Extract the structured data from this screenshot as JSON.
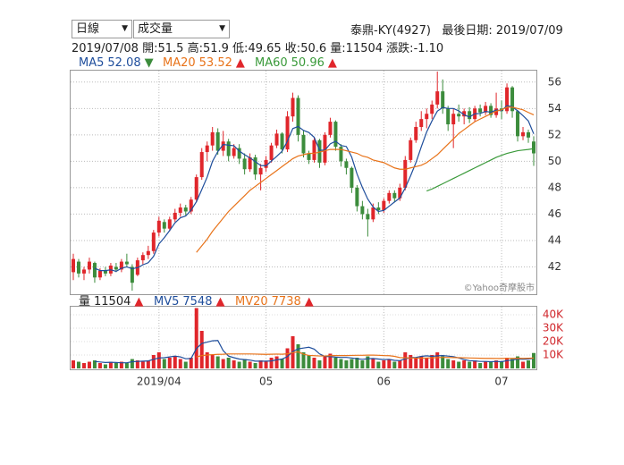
{
  "header": {
    "period": "日線",
    "indicator": "成交量",
    "stock": "泰鼎-KY(4927)",
    "last_date": "最後日期: 2019/07/09",
    "quote_date": "2019/07/08",
    "quote_labels": [
      "開:",
      "高:",
      "低:",
      "收:",
      "量:",
      "漲跌:"
    ],
    "change": "-1.10"
  },
  "chart_data": [
    {
      "type": "candlestick",
      "up_color": "#e0262b",
      "down_color": "#3c8c3c",
      "grid": true,
      "ylim": [
        40,
        56.8
      ],
      "yticks": [
        42,
        44,
        46,
        48,
        50,
        52,
        54,
        56
      ],
      "watermark": "©Yahoo奇摩股市",
      "candles": [
        [
          41.6,
          43.0,
          41.0,
          42.6
        ],
        [
          42.4,
          42.6,
          41.2,
          41.5
        ],
        [
          41.5,
          42.0,
          41.0,
          41.8
        ],
        [
          41.8,
          42.7,
          41.5,
          42.4
        ],
        [
          42.3,
          42.4,
          40.8,
          41.2
        ],
        [
          41.2,
          41.9,
          41.0,
          41.7
        ],
        [
          41.7,
          42.0,
          41.3,
          41.5
        ],
        [
          41.5,
          42.3,
          41.3,
          42.1
        ],
        [
          42.0,
          42.3,
          41.6,
          41.8
        ],
        [
          41.8,
          42.6,
          41.6,
          42.4
        ],
        [
          42.4,
          43.0,
          42.0,
          42.2
        ],
        [
          42.0,
          42.2,
          40.2,
          40.8
        ],
        [
          41.4,
          42.7,
          41.3,
          42.5
        ],
        [
          42.5,
          43.1,
          42.2,
          42.9
        ],
        [
          42.9,
          43.6,
          42.6,
          43.2
        ],
        [
          43.2,
          44.8,
          43.0,
          44.6
        ],
        [
          44.6,
          45.8,
          44.3,
          45.5
        ],
        [
          45.4,
          45.6,
          44.6,
          44.9
        ],
        [
          44.9,
          45.8,
          44.7,
          45.6
        ],
        [
          45.6,
          46.4,
          45.4,
          46.1
        ],
        [
          46.1,
          46.8,
          45.8,
          46.5
        ],
        [
          46.5,
          46.7,
          45.9,
          46.2
        ],
        [
          46.2,
          47.3,
          46.0,
          47.1
        ],
        [
          47.1,
          49.0,
          46.9,
          48.8
        ],
        [
          48.8,
          51.0,
          48.6,
          50.7
        ],
        [
          50.7,
          51.5,
          50.0,
          51.2
        ],
        [
          51.2,
          52.6,
          50.8,
          52.2
        ],
        [
          52.2,
          52.5,
          50.5,
          50.8
        ],
        [
          50.8,
          52.3,
          50.4,
          51.5
        ],
        [
          51.5,
          51.7,
          50.0,
          50.4
        ],
        [
          50.4,
          51.3,
          50.2,
          51.0
        ],
        [
          51.0,
          51.3,
          49.8,
          50.2
        ],
        [
          50.2,
          50.6,
          49.0,
          49.4
        ],
        [
          49.4,
          50.6,
          49.2,
          50.3
        ],
        [
          50.3,
          50.5,
          48.6,
          49.0
        ],
        [
          49.0,
          49.8,
          47.8,
          49.5
        ],
        [
          49.5,
          50.4,
          49.2,
          50.1
        ],
        [
          50.1,
          51.4,
          49.9,
          51.2
        ],
        [
          51.2,
          52.4,
          51.0,
          52.1
        ],
        [
          52.1,
          52.2,
          50.6,
          50.9
        ],
        [
          50.9,
          53.8,
          50.7,
          53.4
        ],
        [
          53.4,
          55.2,
          53.0,
          54.8
        ],
        [
          54.8,
          55.0,
          51.5,
          52.0
        ],
        [
          52.0,
          52.3,
          50.3,
          50.6
        ],
        [
          50.6,
          50.8,
          49.8,
          50.1
        ],
        [
          50.1,
          51.8,
          49.9,
          51.6
        ],
        [
          51.6,
          51.7,
          49.5,
          49.9
        ],
        [
          49.9,
          52.2,
          49.7,
          52.0
        ],
        [
          52.0,
          53.3,
          51.8,
          53.0
        ],
        [
          53.0,
          53.1,
          50.8,
          51.1
        ],
        [
          51.1,
          51.3,
          49.6,
          50.0
        ],
        [
          50.0,
          50.2,
          49.0,
          49.5
        ],
        [
          49.5,
          49.6,
          47.6,
          48.0
        ],
        [
          48.0,
          48.2,
          46.2,
          46.6
        ],
        [
          46.6,
          47.0,
          45.6,
          46.0
        ],
        [
          46.0,
          46.4,
          44.3,
          45.6
        ],
        [
          45.6,
          46.8,
          45.4,
          46.5
        ],
        [
          46.5,
          46.9,
          46.0,
          46.3
        ],
        [
          46.3,
          47.2,
          46.1,
          47.0
        ],
        [
          47.0,
          47.8,
          46.8,
          47.6
        ],
        [
          47.6,
          47.8,
          46.9,
          47.2
        ],
        [
          47.2,
          48.3,
          47.0,
          48.0
        ],
        [
          48.0,
          50.4,
          47.8,
          50.1
        ],
        [
          50.1,
          51.8,
          49.9,
          51.6
        ],
        [
          51.6,
          53.0,
          51.4,
          52.6
        ],
        [
          52.6,
          53.8,
          52.3,
          53.2
        ],
        [
          53.2,
          54.0,
          52.5,
          53.6
        ],
        [
          53.6,
          54.6,
          53.2,
          54.3
        ],
        [
          54.3,
          56.8,
          54.0,
          55.3
        ],
        [
          55.3,
          56.2,
          53.6,
          54.0
        ],
        [
          54.0,
          54.2,
          52.3,
          52.8
        ],
        [
          52.8,
          54.0,
          51.0,
          53.6
        ],
        [
          53.6,
          54.3,
          53.0,
          53.4
        ],
        [
          53.4,
          54.0,
          52.8,
          53.8
        ],
        [
          53.8,
          54.1,
          52.9,
          53.2
        ],
        [
          53.2,
          54.2,
          53.0,
          54.0
        ],
        [
          54.0,
          54.3,
          53.4,
          53.7
        ],
        [
          53.7,
          54.5,
          53.5,
          54.2
        ],
        [
          54.2,
          54.4,
          53.3,
          53.5
        ],
        [
          53.5,
          55.2,
          53.3,
          54.0
        ],
        [
          54.0,
          54.6,
          53.2,
          53.8
        ],
        [
          53.8,
          55.9,
          53.6,
          55.6
        ],
        [
          55.6,
          55.7,
          53.3,
          53.8
        ],
        [
          53.8,
          53.9,
          51.5,
          51.9
        ],
        [
          51.9,
          52.6,
          51.6,
          52.2
        ],
        [
          52.2,
          52.4,
          51.4,
          51.8
        ],
        [
          51.5,
          51.9,
          49.65,
          50.6
        ]
      ],
      "series": [
        {
          "name": "MA5",
          "color": "#1f4e9c",
          "arrow": "▼",
          "arrow_color": "#3c8c3c",
          "values": [
            null,
            null,
            null,
            null,
            41.9,
            41.72,
            41.72,
            41.78,
            41.66,
            41.9,
            42.0,
            41.86,
            41.94,
            42.16,
            42.32,
            42.8,
            43.74,
            44.22,
            44.76,
            45.34,
            45.72,
            45.86,
            46.3,
            46.94,
            47.86,
            48.8,
            50.0,
            50.74,
            51.28,
            51.22,
            51.18,
            50.78,
            50.5,
            50.26,
            49.98,
            49.68,
            49.66,
            50.02,
            50.38,
            50.76,
            51.54,
            52.48,
            52.64,
            52.34,
            52.18,
            51.82,
            50.84,
            50.84,
            51.32,
            51.52,
            51.2,
            51.12,
            50.32,
            49.04,
            48.02,
            47.14,
            46.54,
            46.2,
            46.28,
            46.6,
            46.92,
            47.22,
            47.98,
            48.9,
            49.9,
            51.1,
            52.22,
            53.06,
            53.8,
            54.08,
            54.0,
            54.0,
            53.82,
            53.52,
            53.36,
            53.6,
            53.62,
            53.78,
            53.72,
            53.88,
            53.84,
            54.22,
            54.14,
            53.82,
            53.46,
            53.06,
            52.08
          ]
        },
        {
          "name": "MA20",
          "color": "#e8731a",
          "arrow": "▲",
          "arrow_color": "#e0262b",
          "values": [
            null,
            null,
            null,
            null,
            null,
            null,
            null,
            null,
            null,
            null,
            null,
            null,
            null,
            null,
            null,
            null,
            null,
            null,
            null,
            null,
            null,
            null,
            null,
            43.1,
            43.6,
            44.1,
            44.7,
            45.2,
            45.7,
            46.2,
            46.6,
            47.0,
            47.4,
            47.8,
            48.1,
            48.4,
            48.7,
            49.0,
            49.3,
            49.6,
            49.9,
            50.2,
            50.4,
            50.5,
            50.6,
            50.6,
            50.7,
            50.8,
            50.9,
            50.9,
            50.9,
            50.8,
            50.7,
            50.6,
            50.4,
            50.3,
            50.1,
            50.0,
            49.9,
            49.7,
            49.5,
            49.4,
            49.4,
            49.5,
            49.6,
            49.7,
            49.9,
            50.2,
            50.5,
            50.9,
            51.3,
            51.7,
            52.1,
            52.4,
            52.7,
            53.0,
            53.2,
            53.4,
            53.6,
            53.8,
            53.9,
            54.1,
            54.1,
            54.0,
            53.9,
            53.7,
            53.52
          ]
        },
        {
          "name": "MA60",
          "color": "#3a9a3a",
          "arrow": "▲",
          "arrow_color": "#e0262b",
          "values": [
            null,
            null,
            null,
            null,
            null,
            null,
            null,
            null,
            null,
            null,
            null,
            null,
            null,
            null,
            null,
            null,
            null,
            null,
            null,
            null,
            null,
            null,
            null,
            null,
            null,
            null,
            null,
            null,
            null,
            null,
            null,
            null,
            null,
            null,
            null,
            null,
            null,
            null,
            null,
            null,
            null,
            null,
            null,
            null,
            null,
            null,
            null,
            null,
            null,
            null,
            null,
            null,
            null,
            null,
            null,
            null,
            null,
            null,
            null,
            null,
            null,
            null,
            null,
            null,
            null,
            null,
            47.75,
            47.9,
            48.1,
            48.3,
            48.5,
            48.7,
            48.9,
            49.1,
            49.3,
            49.5,
            49.7,
            49.9,
            50.1,
            50.3,
            50.45,
            50.6,
            50.7,
            50.8,
            50.85,
            50.9,
            50.96
          ]
        }
      ]
    },
    {
      "type": "volume",
      "name": "量",
      "arrow": "▲",
      "arrow_color": "#e0262b",
      "label_color": "#d0262b",
      "ylim": [
        0,
        46000
      ],
      "yticks": [
        {
          "value": 10000,
          "label": "10K"
        },
        {
          "value": 20000,
          "label": "20K"
        },
        {
          "value": 30000,
          "label": "30K"
        },
        {
          "value": 40000,
          "label": "40K"
        }
      ],
      "categories": [
        null,
        null,
        null,
        null,
        null,
        null,
        null,
        null,
        null,
        null,
        null,
        null,
        null,
        null,
        null,
        null,
        "2019/04",
        null,
        null,
        null,
        null,
        null,
        null,
        null,
        null,
        null,
        null,
        null,
        null,
        null,
        null,
        null,
        null,
        null,
        null,
        null,
        "05",
        null,
        null,
        null,
        null,
        null,
        null,
        null,
        null,
        null,
        null,
        null,
        null,
        null,
        null,
        null,
        null,
        null,
        null,
        null,
        null,
        null,
        "06",
        null,
        null,
        null,
        null,
        null,
        null,
        null,
        null,
        null,
        null,
        null,
        null,
        null,
        null,
        null,
        null,
        null,
        null,
        null,
        null,
        null,
        "07",
        null,
        null,
        null,
        null,
        null,
        null
      ],
      "values": [
        6000,
        5000,
        4000,
        5000,
        6000,
        4000,
        3000,
        5000,
        4000,
        5000,
        4000,
        7000,
        6000,
        5000,
        6000,
        10000,
        12000,
        7000,
        8000,
        9000,
        7000,
        5000,
        8000,
        45000,
        28000,
        12000,
        10000,
        9000,
        7000,
        8000,
        6000,
        5000,
        7000,
        5000,
        4000,
        6000,
        5000,
        8000,
        9000,
        7000,
        15000,
        24000,
        18000,
        12000,
        10000,
        8000,
        6000,
        9000,
        11000,
        8000,
        7000,
        6000,
        7000,
        8000,
        6000,
        9000,
        7000,
        5000,
        6000,
        7000,
        5000,
        6000,
        12000,
        10000,
        8000,
        9000,
        8000,
        10000,
        12000,
        9000,
        7000,
        6000,
        5000,
        6000,
        5000,
        6000,
        4000,
        5000,
        5000,
        6000,
        5000,
        8000,
        7000,
        9000,
        5000,
        6000,
        11504
      ],
      "series": [
        {
          "name": "MV5",
          "color": "#1f4e9c",
          "arrow": "▲",
          "arrow_color": "#e0262b",
          "values": [
            null,
            null,
            null,
            null,
            5200,
            4800,
            4400,
            4600,
            4400,
            4200,
            4200,
            5000,
            5200,
            5400,
            5600,
            6800,
            7800,
            8000,
            8600,
            9200,
            8600,
            7200,
            7400,
            14800,
            18600,
            19600,
            20600,
            20800,
            13200,
            9200,
            8000,
            7000,
            6600,
            6200,
            5400,
            5400,
            5400,
            5600,
            6400,
            7000,
            8800,
            12600,
            14600,
            15200,
            15800,
            14400,
            10800,
            9000,
            8800,
            8400,
            8200,
            8200,
            7800,
            7200,
            6800,
            7200,
            7400,
            7000,
            6600,
            6800,
            6000,
            5800,
            7200,
            8000,
            8200,
            9000,
            9400,
            9000,
            9400,
            9600,
            9200,
            8800,
            7800,
            6600,
            5800,
            5600,
            5200,
            5200,
            5000,
            5200,
            5000,
            5800,
            6200,
            7000,
            6800,
            7000,
            7548
          ]
        },
        {
          "name": "MV20",
          "color": "#e8731a",
          "arrow": "▲",
          "arrow_color": "#e0262b",
          "values": [
            null,
            null,
            null,
            null,
            null,
            null,
            null,
            null,
            null,
            null,
            null,
            null,
            null,
            null,
            null,
            null,
            null,
            null,
            null,
            null,
            null,
            null,
            null,
            8500,
            9600,
            10000,
            10300,
            10500,
            10600,
            10800,
            10800,
            10800,
            10800,
            10800,
            10700,
            10600,
            10500,
            10600,
            10700,
            10600,
            10900,
            11800,
            12300,
            10600,
            9700,
            9500,
            9300,
            9300,
            9500,
            9600,
            9600,
            9600,
            9700,
            9800,
            9800,
            9900,
            9900,
            9800,
            9600,
            9500,
            9000,
            8100,
            7900,
            7800,
            7700,
            7700,
            7800,
            7900,
            8100,
            8200,
            8200,
            8100,
            8000,
            7900,
            7800,
            7700,
            7600,
            7500,
            7500,
            7400,
            7400,
            7500,
            7500,
            7600,
            7500,
            7600,
            7738
          ]
        }
      ]
    }
  ]
}
